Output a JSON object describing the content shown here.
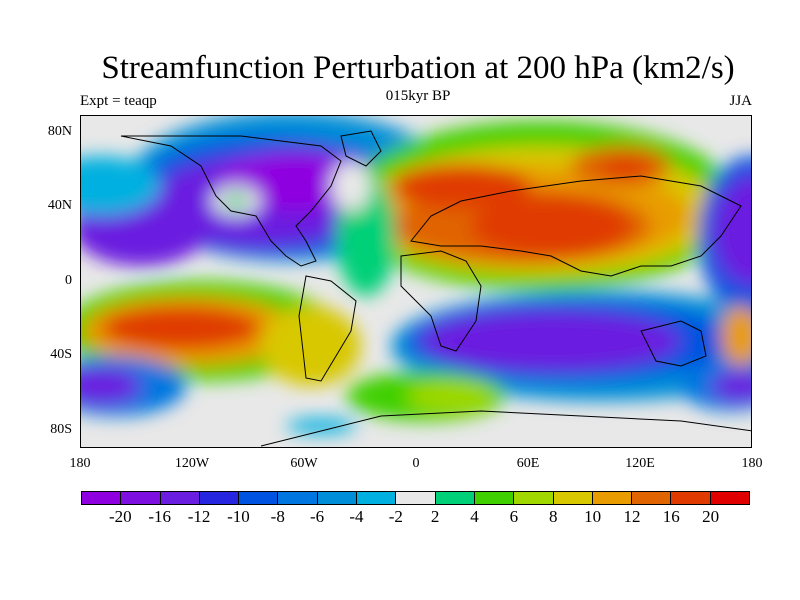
{
  "title": "Streamfunction Perturbation at 200 hPa (km2/s)",
  "subtitle": "015kyr BP",
  "left_label": "Expt = teaqp",
  "right_label": "JJA",
  "map": {
    "lat_labels": [
      "80N",
      "40N",
      "0",
      "40S",
      "80S"
    ],
    "lon_labels": [
      "180",
      "120W",
      "60W",
      "0",
      "60E",
      "120E",
      "180"
    ],
    "lon_range": [
      -180,
      180
    ],
    "lat_range": [
      -90,
      90
    ],
    "projection": "cylindrical-equidistant",
    "features": {
      "land_outline_color": "#000000",
      "fill_style": "filled-contours"
    }
  },
  "colorbar": {
    "colors": [
      "#8f00e0",
      "#7d10e0",
      "#6a1fe0",
      "#2626e0",
      "#0053e0",
      "#0076e0",
      "#008ed8",
      "#00b0e0",
      "#e8e8e8",
      "#00d078",
      "#40d000",
      "#a0d800",
      "#d8c800",
      "#e89c00",
      "#e06400",
      "#e03a00",
      "#e00000"
    ],
    "labels": [
      "-20",
      "-16",
      "-12",
      "-10",
      "-8",
      "-6",
      "-4",
      "-2",
      "2",
      "4",
      "6",
      "8",
      "10",
      "12",
      "16",
      "20"
    ]
  }
}
